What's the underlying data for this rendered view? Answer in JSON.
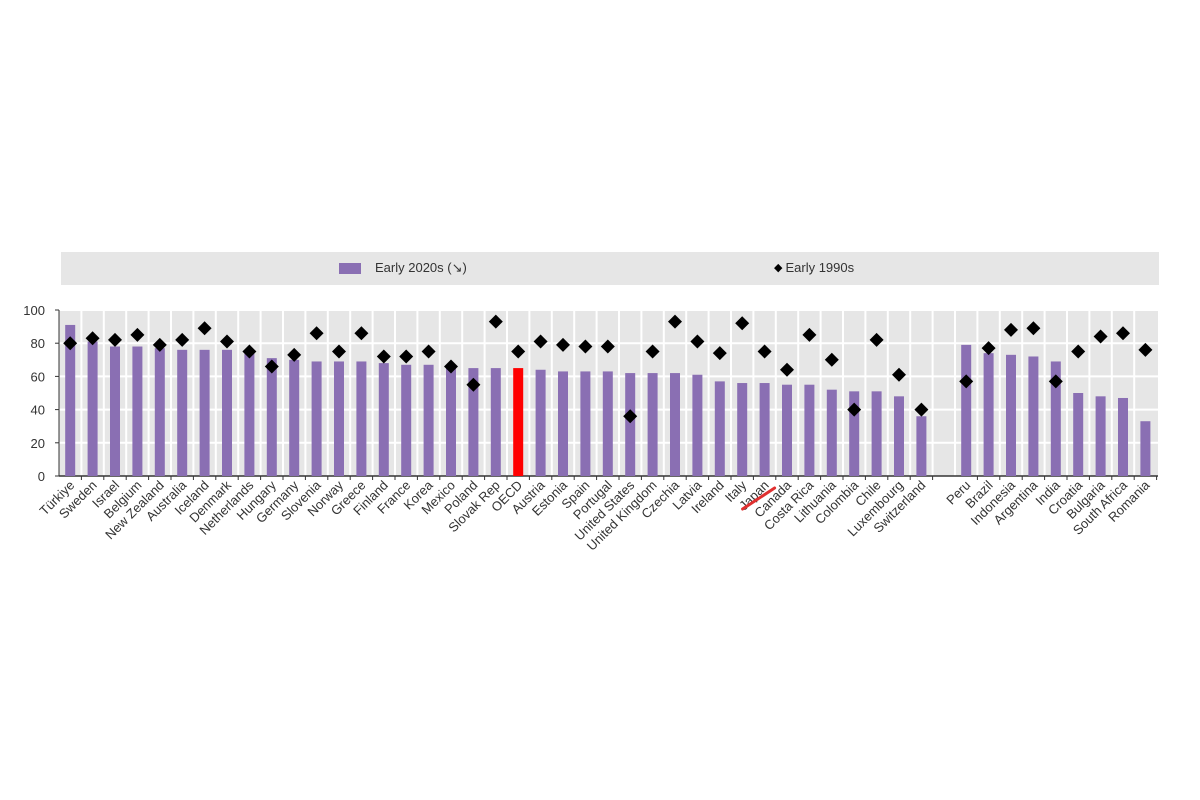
{
  "chart_data": {
    "type": "bar",
    "legend": {
      "position": "top",
      "bars_label": "Early 2020s (↘)",
      "markers_label": "Early 1990s"
    },
    "colors": {
      "bar": "#8a6fb3",
      "highlight": "#ff0000",
      "marker": "#000000",
      "plot_bg": "#e6e6e6",
      "strike": "#e03030"
    },
    "ylim": [
      0,
      100
    ],
    "yticks": [
      "0",
      "20",
      "40",
      "60",
      "80",
      "100"
    ],
    "grid": true,
    "highlight_category": "OECD",
    "struck_out_label": "Japan",
    "gap_after": "Switzerland",
    "categories": [
      "Türkiye",
      "Sweden",
      "Israel",
      "Belgium",
      "New Zealand",
      "Australia",
      "Iceland",
      "Denmark",
      "Netherlands",
      "Hungary",
      "Germany",
      "Slovenia",
      "Norway",
      "Greece",
      "Finland",
      "France",
      "Korea",
      "Mexico",
      "Poland",
      "Slovak Rep",
      "OECD",
      "Austria",
      "Estonia",
      "Spain",
      "Portugal",
      "United States",
      "United Kingdom",
      "Czechia",
      "Latvia",
      "Ireland",
      "Italy",
      "Japan",
      "Canada",
      "Costa Rica",
      "Lithuania",
      "Colombia",
      "Chile",
      "Luxembourg",
      "Switzerland",
      "Peru",
      "Brazil",
      "Indonesia",
      "Argentina",
      "India",
      "Croatia",
      "Bulgaria",
      "South Africa",
      "Romania"
    ],
    "series": [
      {
        "name": "Early 2020s (↘)",
        "kind": "bar",
        "values": [
          91,
          81,
          78,
          78,
          77,
          76,
          76,
          76,
          74,
          71,
          70,
          69,
          69,
          69,
          68,
          67,
          67,
          66,
          65,
          65,
          65,
          64,
          63,
          63,
          63,
          62,
          62,
          62,
          61,
          57,
          56,
          56,
          55,
          55,
          52,
          51,
          51,
          48,
          36,
          79,
          74,
          73,
          72,
          69,
          50,
          48,
          47,
          33
        ]
      },
      {
        "name": "Early 1990s",
        "kind": "marker",
        "values": [
          80,
          83,
          82,
          85,
          79,
          82,
          89,
          81,
          75,
          66,
          73,
          86,
          75,
          86,
          72,
          72,
          75,
          66,
          55,
          93,
          75,
          81,
          79,
          78,
          78,
          36,
          75,
          93,
          81,
          74,
          92,
          75,
          64,
          85,
          70,
          40,
          82,
          61,
          40,
          57,
          77,
          88,
          89,
          57,
          75,
          84,
          86,
          76
        ]
      }
    ]
  }
}
